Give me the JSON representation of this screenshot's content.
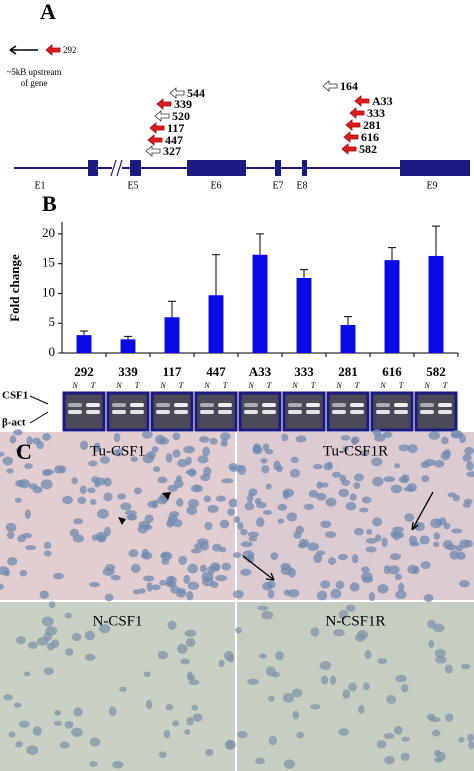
{
  "panel_a": {
    "label": "A",
    "upstream_primer": "292",
    "upstream_note": [
      "~5kB upstream",
      "of gene"
    ],
    "exons": [
      "E1",
      "E5",
      "E6",
      "E7",
      "E8",
      "E9"
    ],
    "primers": [
      {
        "label": "544",
        "fill": "#ffffff"
      },
      {
        "label": "339",
        "fill": "#d81e1e"
      },
      {
        "label": "520",
        "fill": "#ffffff"
      },
      {
        "label": "117",
        "fill": "#d81e1e"
      },
      {
        "label": "447",
        "fill": "#d81e1e"
      },
      {
        "label": "327",
        "fill": "#ffffff"
      },
      {
        "label": "164",
        "fill": "#ffffff"
      },
      {
        "label": "A33",
        "fill": "#d81e1e"
      },
      {
        "label": "333",
        "fill": "#d81e1e"
      },
      {
        "label": "281",
        "fill": "#d81e1e"
      },
      {
        "label": "616",
        "fill": "#d81e1e"
      },
      {
        "label": "582",
        "fill": "#d81e1e"
      }
    ]
  },
  "panel_b": {
    "label": "B"
  },
  "chart_data": {
    "type": "bar",
    "y_label": "Fold change",
    "categories": [
      "292",
      "339",
      "117",
      "447",
      "A33",
      "333",
      "281",
      "616",
      "582"
    ],
    "values": [
      3.0,
      2.3,
      6.0,
      9.7,
      16.5,
      12.6,
      4.7,
      15.6,
      16.3
    ],
    "errors": [
      0.7,
      0.5,
      2.7,
      6.8,
      3.5,
      1.4,
      1.4,
      2.1,
      5.0
    ],
    "color": "#0a0ae6",
    "ylim": [
      0,
      22
    ],
    "yticks": [
      0,
      5,
      10,
      15,
      20
    ]
  },
  "gel": {
    "row_labels": [
      "CSF1",
      "β-act"
    ],
    "lane_labels": [
      "N",
      "T"
    ]
  },
  "panel_c": {
    "label": "C",
    "images": [
      "Tu-CSF1",
      "Tu-CSF1R",
      "N-CSF1",
      "N-CSF1R"
    ]
  }
}
